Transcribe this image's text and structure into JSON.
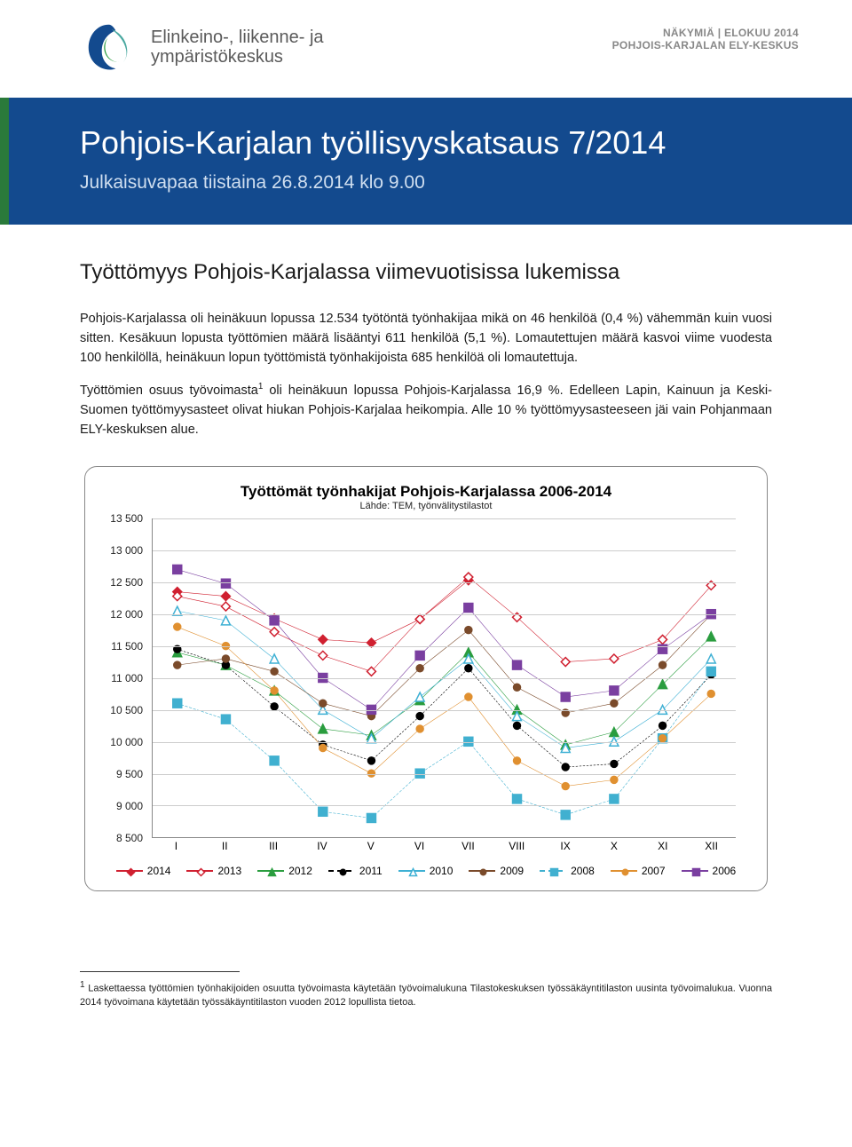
{
  "header": {
    "right_line1": "NÄKYMIÄ | ELOKUU 2014",
    "right_line2": "POHJOIS-KARJALAN ELY-KESKUS",
    "logo_text_line1": "Elinkeino-, liikenne- ja",
    "logo_text_line2": "ympäristökeskus",
    "logo_colors": {
      "navy": "#134a8e",
      "green": "#2a9d3f",
      "teal": "#4aa8a0"
    }
  },
  "banner": {
    "title": "Pohjois-Karjalan työllisyyskatsaus 7/2014",
    "subtitle": "Julkaisuvapaa tiistaina 26.8.2014 klo 9.00",
    "bg": "#134a8e",
    "accent": "#2a7a3a"
  },
  "body": {
    "heading": "Työttömyys Pohjois-Karjalassa viimevuotisissa lukemissa",
    "para1": "Pohjois-Karjalassa oli heinäkuun lopussa 12.534 työtöntä työnhakijaa mikä on 46 henkilöä (0,4 %) vähemmän kuin vuosi sitten. Kesäkuun lopusta työttömien määrä lisääntyi 611 henkilöä (5,1 %). Lomautettujen määrä kasvoi viime vuodesta 100 henkilöllä, heinäkuun lopun työttömistä työnhakijoista 685 henkilöä oli lomautettuja.",
    "para2a": "Työttömien osuus työvoimasta",
    "para2b": " oli heinäkuun lopussa Pohjois-Karjalassa 16,9 %. Edelleen Lapin, Kainuun ja Keski-Suomen työttömyysasteet olivat hiukan Pohjois-Karjalaa heikompia. Alle 10 % työttömyysasteeseen jäi vain Pohjanmaan ELY-keskuksen alue."
  },
  "chart": {
    "title": "Työttömät työnhakijat Pohjois-Karjalassa 2006-2014",
    "subtitle": "Lähde: TEM, työnvälitystilastot",
    "ymin": 8500,
    "ymax": 13500,
    "ytick_step": 500,
    "y_ticks": [
      "8 500",
      "9 000",
      "9 500",
      "10 000",
      "10 500",
      "11 000",
      "11 500",
      "12 000",
      "12 500",
      "13 000",
      "13 500"
    ],
    "x_labels": [
      "I",
      "II",
      "III",
      "IV",
      "V",
      "VI",
      "VII",
      "VIII",
      "IX",
      "X",
      "XI",
      "XII"
    ],
    "series": [
      {
        "name": "2014",
        "color": "#d02030",
        "marker": "diamond",
        "fill": true,
        "dash": "",
        "values": [
          12350,
          12280,
          11930,
          11600,
          11550,
          11920,
          12530,
          null,
          null,
          null,
          null,
          null
        ]
      },
      {
        "name": "2013",
        "color": "#d02030",
        "marker": "diamond",
        "fill": false,
        "dash": "",
        "values": [
          12280,
          12120,
          11720,
          11350,
          11100,
          11920,
          12580,
          11950,
          11250,
          11300,
          11600,
          12450
        ]
      },
      {
        "name": "2012",
        "color": "#2a9d3f",
        "marker": "triangle",
        "fill": true,
        "dash": "",
        "values": [
          11400,
          11200,
          10800,
          10200,
          10100,
          10650,
          11400,
          10500,
          9950,
          10150,
          10900,
          11650
        ]
      },
      {
        "name": "2011",
        "color": "#000000",
        "marker": "circle",
        "fill": true,
        "dash": "6 4",
        "values": [
          11450,
          11200,
          10550,
          9950,
          9700,
          10400,
          11150,
          10250,
          9600,
          9650,
          10250,
          11050
        ]
      },
      {
        "name": "2010",
        "color": "#3eb0d4",
        "marker": "triangle",
        "fill": false,
        "dash": "",
        "values": [
          12050,
          11900,
          11300,
          10500,
          10050,
          10700,
          11300,
          10400,
          9900,
          10000,
          10500,
          11300
        ]
      },
      {
        "name": "2009",
        "color": "#7a4a2a",
        "marker": "circle",
        "fill": true,
        "dash": "",
        "values": [
          11200,
          11300,
          11100,
          10600,
          10400,
          11150,
          11750,
          10850,
          10450,
          10600,
          11200,
          12000
        ]
      },
      {
        "name": "2008",
        "color": "#40b0d0",
        "marker": "square",
        "fill": true,
        "dash": "8 4",
        "values": [
          10600,
          10350,
          9700,
          8900,
          8800,
          9500,
          10000,
          9100,
          8850,
          9100,
          10050,
          11100
        ]
      },
      {
        "name": "2007",
        "color": "#e09030",
        "marker": "circle",
        "fill": true,
        "dash": "",
        "values": [
          11800,
          11500,
          10800,
          9900,
          9500,
          10200,
          10700,
          9700,
          9300,
          9400,
          10050,
          10750
        ]
      },
      {
        "name": "2006",
        "color": "#7a3fa0",
        "marker": "square",
        "fill": true,
        "dash": "",
        "values": [
          12700,
          12480,
          11900,
          11000,
          10500,
          11350,
          12100,
          11200,
          10700,
          10800,
          11450,
          12000
        ]
      }
    ],
    "grid_color": "#cccccc",
    "axis_color": "#888888"
  },
  "footnote": {
    "marker": "1",
    "text": " Laskettaessa työttömien työnhakijoiden osuutta työvoimasta käytetään työvoimalukuna Tilastokeskuksen työssäkäyntitilaston uusinta työvoimalukua. Vuonna 2014 työvoimana käytetään työssäkäyntitilaston vuoden 2012 lopullista tietoa."
  }
}
